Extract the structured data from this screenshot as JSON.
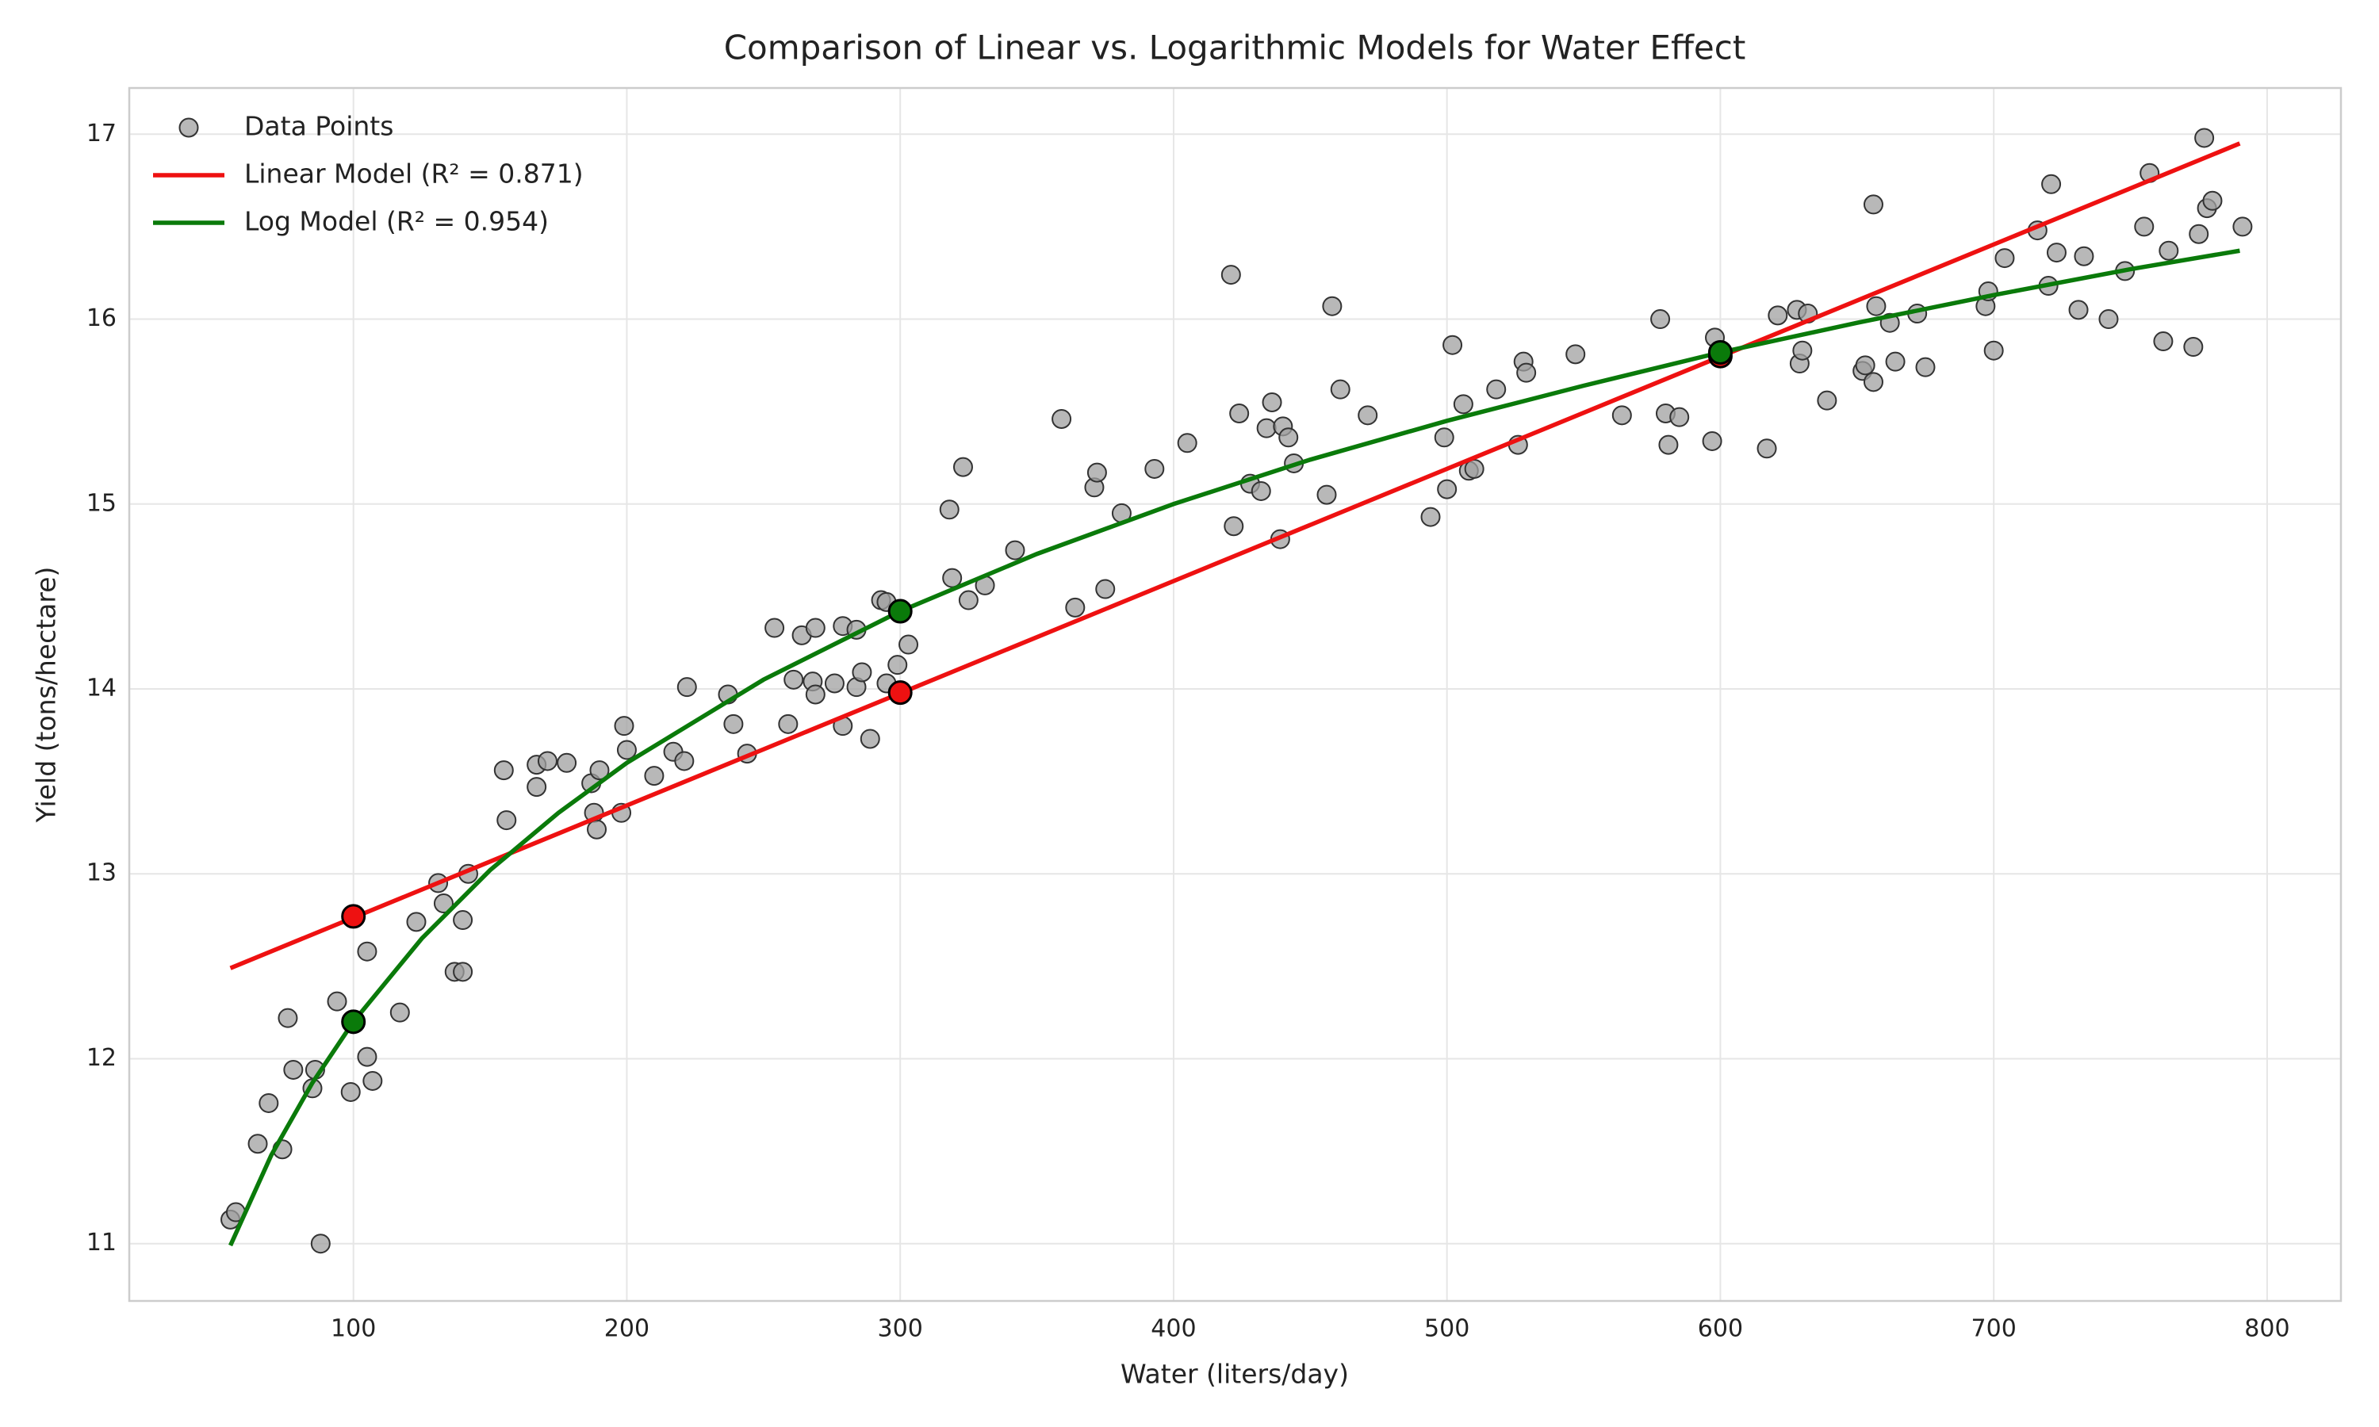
{
  "chart_data": {
    "type": "scatter",
    "title": "Comparison of Linear vs. Logarithmic Models for Water Effect",
    "x_label": "Water (liters/day)",
    "y_label": "Yield (tons/hectare)",
    "xlim": [
      18,
      827
    ],
    "ylim": [
      10.69,
      17.25
    ],
    "xticks": [
      100,
      200,
      300,
      400,
      500,
      600,
      700,
      800
    ],
    "yticks": [
      11,
      12,
      13,
      14,
      15,
      16,
      17
    ],
    "grid": true,
    "legend": "upper left",
    "series": [
      {
        "name": "Data Points",
        "type": "scatter",
        "color": "#a0a0a0",
        "x": [
          55,
          57,
          65,
          69,
          74,
          76,
          78,
          85,
          86,
          88,
          94,
          99,
          100,
          105,
          105,
          107,
          117,
          123,
          131,
          133,
          137,
          140,
          140,
          142,
          155,
          156,
          167,
          167,
          171,
          178,
          187,
          188,
          189,
          190,
          198,
          199,
          200,
          210,
          217,
          221,
          222,
          237,
          239,
          244,
          254,
          259,
          261,
          264,
          268,
          269,
          269,
          276,
          279,
          279,
          284,
          284,
          286,
          289,
          293,
          295,
          295,
          299,
          303,
          318,
          319,
          323,
          325,
          331,
          342,
          359,
          364,
          371,
          372,
          375,
          381,
          393,
          405,
          421,
          422,
          424,
          428,
          432,
          434,
          436,
          439,
          440,
          442,
          444,
          456,
          458,
          461,
          471,
          494,
          499,
          500,
          502,
          506,
          508,
          510,
          518,
          526,
          528,
          529,
          547,
          564,
          578,
          580,
          581,
          585,
          597,
          598,
          600,
          617,
          621,
          628,
          629,
          630,
          632,
          639,
          652,
          653,
          656,
          656,
          657,
          662,
          664,
          672,
          675,
          697,
          698,
          700,
          704,
          716,
          720,
          721,
          723,
          731,
          733,
          742,
          748,
          755,
          757,
          762,
          764,
          773,
          775,
          777,
          778,
          780,
          791
        ],
        "values": [
          11.13,
          11.17,
          11.54,
          11.76,
          11.51,
          12.22,
          11.94,
          11.84,
          11.94,
          11.0,
          12.31,
          11.82,
          12.21,
          12.58,
          12.01,
          11.88,
          12.25,
          12.74,
          12.95,
          12.84,
          12.47,
          12.47,
          12.75,
          13.0,
          13.56,
          13.29,
          13.47,
          13.59,
          13.61,
          13.6,
          13.49,
          13.33,
          13.24,
          13.56,
          13.33,
          13.8,
          13.67,
          13.53,
          13.66,
          13.61,
          14.01,
          13.97,
          13.81,
          13.65,
          14.33,
          13.81,
          14.05,
          14.29,
          14.04,
          13.97,
          14.33,
          14.03,
          14.34,
          13.8,
          14.32,
          14.01,
          14.09,
          13.73,
          14.48,
          14.47,
          14.03,
          14.13,
          14.24,
          14.97,
          14.6,
          15.2,
          14.48,
          14.56,
          14.75,
          15.46,
          14.44,
          15.09,
          15.17,
          14.54,
          14.95,
          15.19,
          15.33,
          16.24,
          14.88,
          15.49,
          15.11,
          15.07,
          15.41,
          15.55,
          14.81,
          15.42,
          15.36,
          15.22,
          15.05,
          16.07,
          15.62,
          15.48,
          14.93,
          15.36,
          15.08,
          15.86,
          15.54,
          15.18,
          15.19,
          15.62,
          15.32,
          15.77,
          15.71,
          15.81,
          15.48,
          16.0,
          15.49,
          15.32,
          15.47,
          15.34,
          15.9,
          15.79,
          15.3,
          16.02,
          16.05,
          15.76,
          15.83,
          16.03,
          15.56,
          15.72,
          15.75,
          16.62,
          15.66,
          16.07,
          15.98,
          15.77,
          16.03,
          15.74,
          16.07,
          16.15,
          15.83,
          16.33,
          16.48,
          16.18,
          16.73,
          16.36,
          16.05,
          16.34,
          16.0,
          16.26,
          16.5,
          16.79,
          15.88,
          16.37,
          15.85,
          16.46,
          16.98,
          16.6,
          16.64,
          16.5
        ]
      },
      {
        "name": "Linear Model (R² = 0.871)",
        "type": "line",
        "color": "#ee1111",
        "x": [
          55,
          790
        ],
        "values": [
          12.49,
          16.95
        ],
        "marker_x": [
          100,
          300,
          600
        ],
        "marker_values": [
          12.77,
          13.98,
          15.8
        ]
      },
      {
        "name": "Log Model (R² = 0.954)",
        "type": "line",
        "color": "#0a7a0a",
        "x": [
          55,
          70,
          85,
          100,
          125,
          150,
          175,
          200,
          250,
          300,
          350,
          400,
          450,
          500,
          550,
          600,
          650,
          700,
          750,
          790
        ],
        "values": [
          10.99,
          11.48,
          11.87,
          12.2,
          12.65,
          13.02,
          13.33,
          13.6,
          14.05,
          14.42,
          14.73,
          15.0,
          15.24,
          15.45,
          15.64,
          15.82,
          15.98,
          16.13,
          16.27,
          16.37
        ],
        "marker_x": [
          100,
          300,
          600
        ],
        "marker_values": [
          12.2,
          14.42,
          15.82
        ]
      }
    ]
  }
}
